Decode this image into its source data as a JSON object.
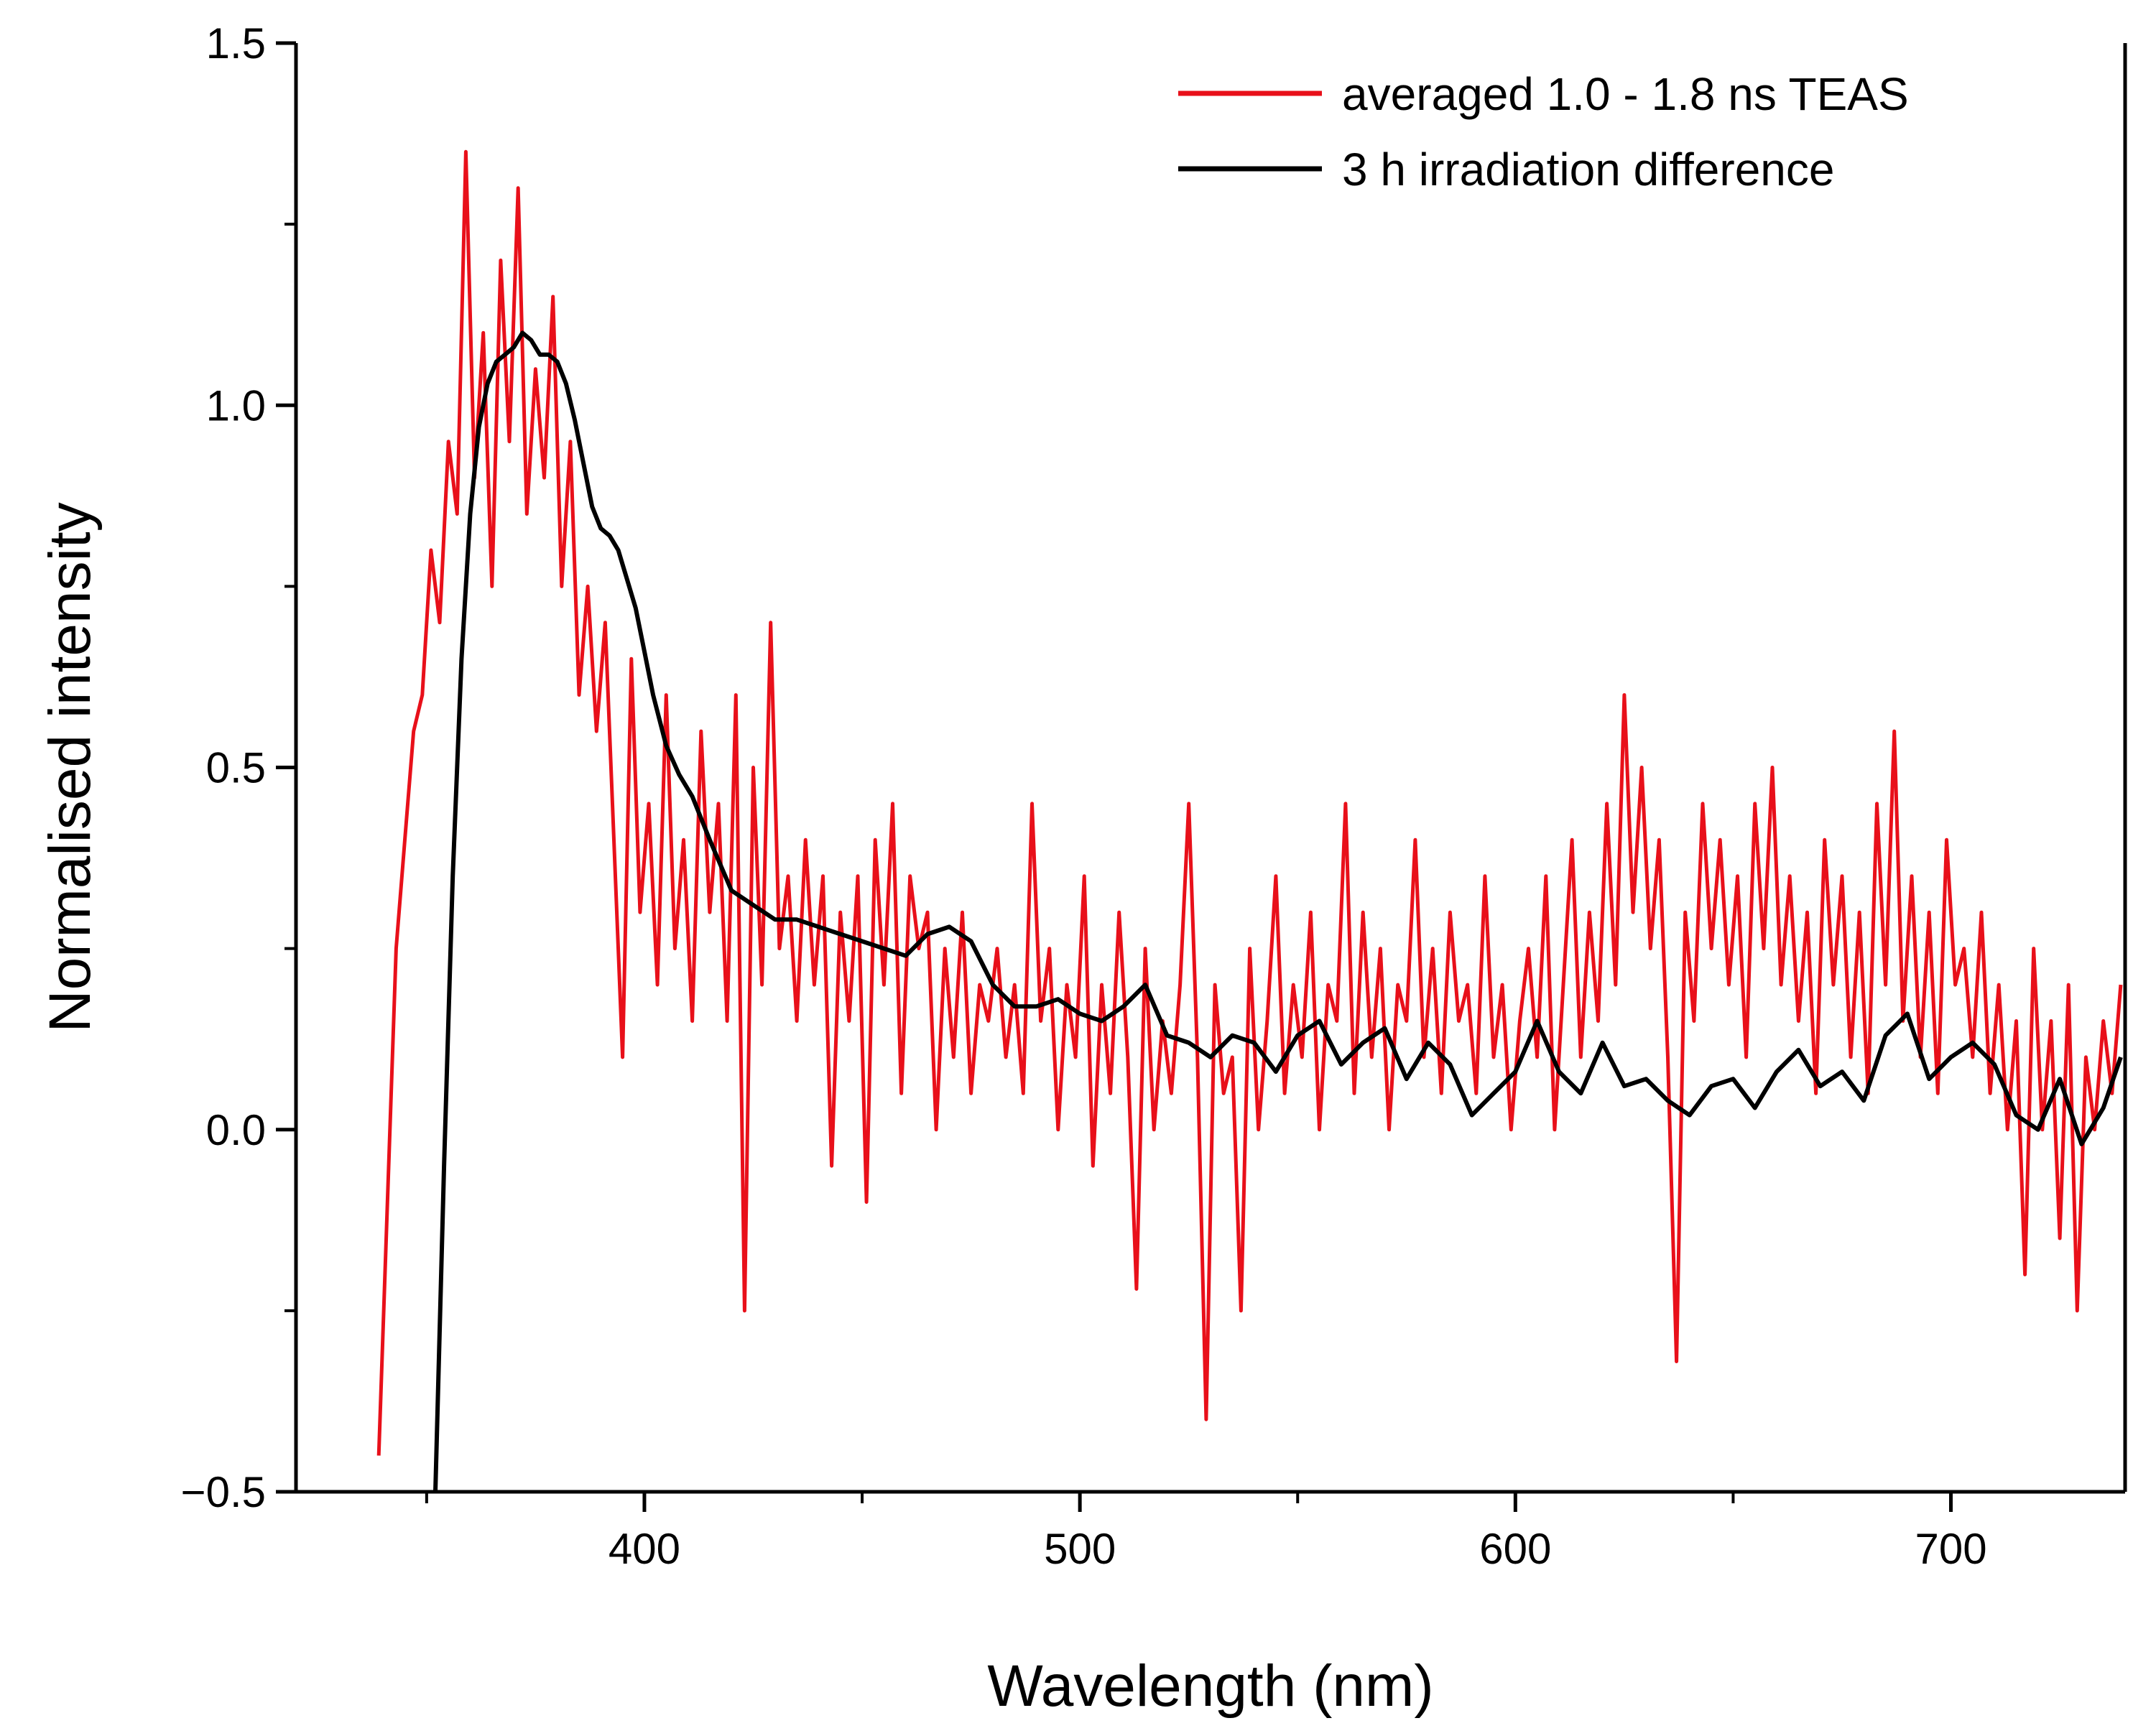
{
  "chart_data": {
    "type": "line",
    "title": "",
    "xlabel": "Wavelength (nm)",
    "ylabel": "Normalised intensity",
    "xlim": [
      320,
      740
    ],
    "ylim": [
      -0.5,
      1.5
    ],
    "xticks": [
      400,
      500,
      600,
      700
    ],
    "xtick_labels": [
      "400",
      "500",
      "600",
      "700"
    ],
    "yticks": [
      -0.5,
      0.0,
      0.5,
      1.0,
      1.5
    ],
    "ytick_labels": [
      "−0.5",
      "0.0",
      "0.5",
      "1.0",
      "1.5"
    ],
    "grid": false,
    "legend_position": "top-right",
    "series": [
      {
        "name": "averaged 1.0 - 1.8 ns TEAS",
        "color": "#e8101a",
        "x": [
          339,
          341,
          343,
          345,
          347,
          349,
          351,
          353,
          355,
          357,
          359,
          361,
          363,
          365,
          367,
          369,
          371,
          373,
          375,
          377,
          379,
          381,
          383,
          385,
          387,
          389,
          391,
          393,
          395,
          397,
          399,
          401,
          403,
          405,
          407,
          409,
          411,
          413,
          415,
          417,
          419,
          421,
          423,
          425,
          427,
          429,
          431,
          433,
          435,
          437,
          439,
          441,
          443,
          445,
          447,
          449,
          451,
          453,
          455,
          457,
          459,
          461,
          463,
          465,
          467,
          469,
          471,
          473,
          475,
          477,
          479,
          481,
          483,
          485,
          487,
          489,
          491,
          493,
          495,
          497,
          499,
          501,
          503,
          505,
          507,
          509,
          511,
          513,
          515,
          517,
          519,
          521,
          523,
          525,
          527,
          529,
          531,
          533,
          535,
          537,
          539,
          541,
          543,
          545,
          547,
          549,
          551,
          553,
          555,
          557,
          559,
          561,
          563,
          565,
          567,
          569,
          571,
          573,
          575,
          577,
          579,
          581,
          583,
          585,
          587,
          589,
          591,
          593,
          595,
          597,
          599,
          601,
          603,
          605,
          607,
          609,
          611,
          613,
          615,
          617,
          619,
          621,
          623,
          625,
          627,
          629,
          631,
          633,
          635,
          637,
          639,
          641,
          643,
          645,
          647,
          649,
          651,
          653,
          655,
          657,
          659,
          661,
          663,
          665,
          667,
          669,
          671,
          673,
          675,
          677,
          679,
          681,
          683,
          685,
          687,
          689,
          691,
          693,
          695,
          697,
          699,
          701,
          703,
          705,
          707,
          709,
          711,
          713,
          715,
          717,
          719,
          721,
          723,
          725,
          727,
          729,
          731,
          733,
          735,
          737,
          739
        ],
        "y": [
          -0.45,
          -0.1,
          0.25,
          0.4,
          0.55,
          0.6,
          0.8,
          0.7,
          0.95,
          0.85,
          1.35,
          0.9,
          1.1,
          0.75,
          1.2,
          0.95,
          1.3,
          0.85,
          1.05,
          0.9,
          1.15,
          0.75,
          0.95,
          0.6,
          0.75,
          0.55,
          0.7,
          0.4,
          0.1,
          0.65,
          0.3,
          0.45,
          0.2,
          0.6,
          0.25,
          0.4,
          0.15,
          0.55,
          0.3,
          0.45,
          0.15,
          0.6,
          -0.25,
          0.5,
          0.2,
          0.7,
          0.25,
          0.35,
          0.15,
          0.4,
          0.2,
          0.35,
          -0.05,
          0.3,
          0.15,
          0.35,
          -0.1,
          0.4,
          0.2,
          0.45,
          0.05,
          0.35,
          0.25,
          0.3,
          0.0,
          0.25,
          0.1,
          0.3,
          0.05,
          0.2,
          0.15,
          0.25,
          0.1,
          0.2,
          0.05,
          0.45,
          0.15,
          0.25,
          0.0,
          0.2,
          0.1,
          0.35,
          -0.05,
          0.2,
          0.05,
          0.3,
          0.1,
          -0.22,
          0.25,
          0.0,
          0.15,
          0.05,
          0.2,
          0.45,
          0.1,
          -0.4,
          0.2,
          0.05,
          0.1,
          -0.25,
          0.25,
          0.0,
          0.15,
          0.35,
          0.05,
          0.2,
          0.1,
          0.3,
          0.0,
          0.2,
          0.15,
          0.45,
          0.05,
          0.3,
          0.1,
          0.25,
          0.0,
          0.2,
          0.15,
          0.4,
          0.1,
          0.25,
          0.05,
          0.3,
          0.15,
          0.2,
          0.05,
          0.35,
          0.1,
          0.2,
          0.0,
          0.15,
          0.25,
          0.1,
          0.35,
          0.0,
          0.2,
          0.4,
          0.1,
          0.3,
          0.15,
          0.45,
          0.2,
          0.6,
          0.3,
          0.5,
          0.25,
          0.4,
          0.1,
          -0.32,
          0.3,
          0.15,
          0.45,
          0.25,
          0.4,
          0.2,
          0.35,
          0.1,
          0.45,
          0.25,
          0.5,
          0.2,
          0.35,
          0.15,
          0.3,
          0.05,
          0.4,
          0.2,
          0.35,
          0.1,
          0.3,
          0.05,
          0.45,
          0.2,
          0.55,
          0.15,
          0.35,
          0.1,
          0.3,
          0.05,
          0.4,
          0.2,
          0.25,
          0.1,
          0.3,
          0.05,
          0.2,
          0.0,
          0.15,
          -0.2,
          0.25,
          0.0,
          0.15,
          -0.15,
          0.2,
          -0.25,
          0.1,
          0.0,
          0.15,
          0.05,
          0.2
        ]
      },
      {
        "name": "3 h irradiation difference",
        "color": "#000000",
        "x": [
          352,
          354,
          356,
          358,
          360,
          362,
          364,
          366,
          368,
          370,
          372,
          374,
          376,
          378,
          380,
          382,
          384,
          386,
          388,
          390,
          392,
          394,
          396,
          398,
          400,
          402,
          405,
          408,
          411,
          415,
          420,
          425,
          430,
          435,
          440,
          445,
          450,
          455,
          460,
          465,
          470,
          475,
          480,
          485,
          490,
          495,
          500,
          505,
          510,
          515,
          520,
          525,
          530,
          535,
          540,
          545,
          550,
          555,
          560,
          565,
          570,
          575,
          580,
          585,
          590,
          595,
          600,
          605,
          610,
          615,
          620,
          625,
          630,
          635,
          640,
          645,
          650,
          655,
          660,
          665,
          670,
          675,
          680,
          685,
          690,
          695,
          700,
          705,
          710,
          715,
          720,
          725,
          730,
          735,
          739
        ],
        "y": [
          -0.5,
          -0.05,
          0.35,
          0.65,
          0.85,
          0.97,
          1.03,
          1.06,
          1.07,
          1.08,
          1.1,
          1.09,
          1.07,
          1.07,
          1.06,
          1.03,
          0.98,
          0.92,
          0.86,
          0.83,
          0.82,
          0.8,
          0.76,
          0.72,
          0.66,
          0.6,
          0.53,
          0.49,
          0.46,
          0.4,
          0.33,
          0.31,
          0.29,
          0.29,
          0.28,
          0.27,
          0.26,
          0.25,
          0.24,
          0.27,
          0.28,
          0.26,
          0.2,
          0.17,
          0.17,
          0.18,
          0.16,
          0.15,
          0.17,
          0.2,
          0.13,
          0.12,
          0.1,
          0.13,
          0.12,
          0.08,
          0.13,
          0.15,
          0.09,
          0.12,
          0.14,
          0.07,
          0.12,
          0.09,
          0.02,
          0.05,
          0.08,
          0.15,
          0.08,
          0.05,
          0.12,
          0.06,
          0.07,
          0.04,
          0.02,
          0.06,
          0.07,
          0.03,
          0.08,
          0.11,
          0.06,
          0.08,
          0.04,
          0.13,
          0.16,
          0.07,
          0.1,
          0.12,
          0.09,
          0.02,
          0.0,
          0.07,
          -0.02,
          0.03,
          0.1
        ]
      }
    ]
  }
}
